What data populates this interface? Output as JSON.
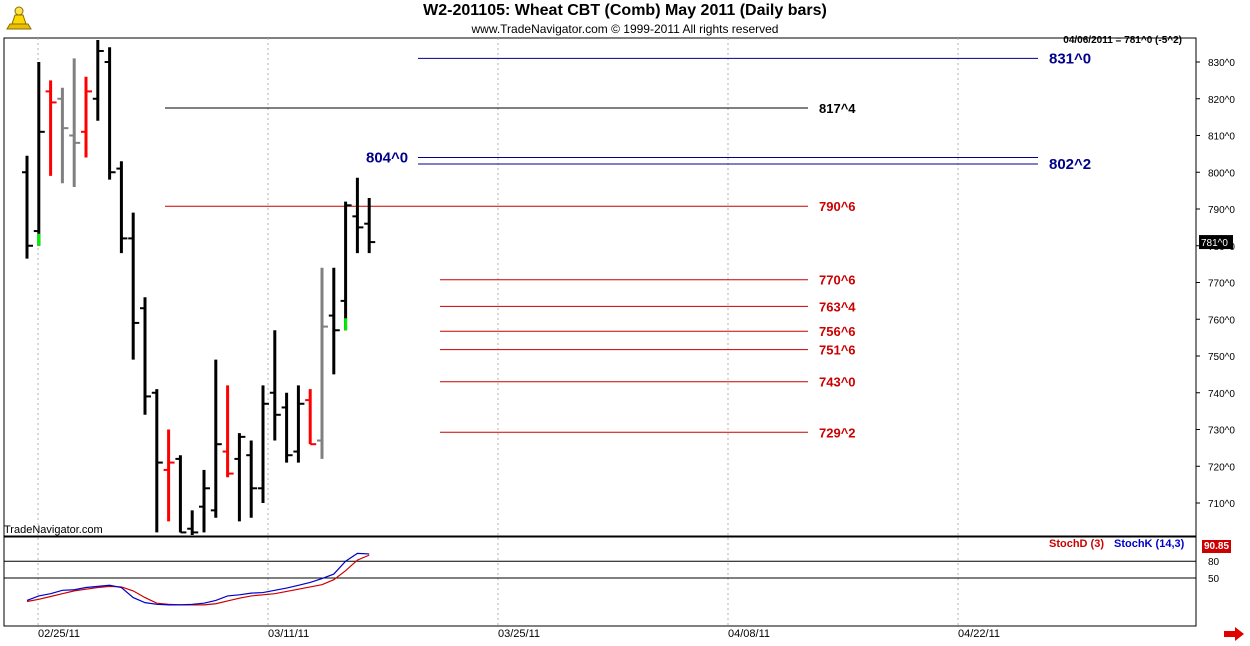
{
  "header": {
    "title": "W2-201105:  Wheat CBT (Comb) May 2011  (Daily bars)",
    "subtitle": "www.TradeNavigator.com © 1999-2011 All rights reserved",
    "price_readout": "04/06/2011 = 781^0 (-5^2)",
    "logo_icon": "trade-navigator-logo-icon"
  },
  "watermark": "TradeNavigator.com",
  "colors": {
    "bar_default": "#000000",
    "bar_red": "#ff0000",
    "bar_gray": "#808080",
    "bar_green": "#00ee00",
    "level_blue": "#00008b",
    "level_red": "#cc0000",
    "level_black": "#000000",
    "stoch_d": "#cc0000",
    "stoch_k": "#0000cc"
  },
  "chart_data": [
    {
      "type": "ohlc",
      "title": "W2-201105:  Wheat CBT (Comb) May 2011  (Daily bars)",
      "ylim": [
        700,
        836
      ],
      "y_ticks": [
        "710^0",
        "720^0",
        "730^0",
        "740^0",
        "750^0",
        "760^0",
        "770^0",
        "780^0",
        "790^0",
        "800^0",
        "810^0",
        "820^0",
        "830^0"
      ],
      "x_ticks": [
        "02/25/11",
        "03/11/11",
        "03/25/11",
        "04/08/11",
        "04/22/11"
      ],
      "current_price_label": "781^0",
      "bars": [
        {
          "date": "02/23/11",
          "open": 800,
          "high": 804.5,
          "low": 776.5,
          "close": 780,
          "color": "bar_default"
        },
        {
          "date": "02/24/11",
          "open": 784,
          "high": 830,
          "low": 780,
          "close": 811,
          "color": "bar_default"
        },
        {
          "date": "02/25/11",
          "open": 822,
          "high": 825,
          "low": 799,
          "close": 819,
          "color": "bar_red"
        },
        {
          "date": "02/28/11",
          "open": 820,
          "high": 823,
          "low": 797,
          "close": 812,
          "color": "bar_gray"
        },
        {
          "date": "03/01/11",
          "open": 810,
          "high": 831,
          "low": 796,
          "close": 808,
          "color": "bar_gray"
        },
        {
          "date": "03/02/11",
          "open": 811,
          "high": 826,
          "low": 804,
          "close": 822,
          "color": "bar_red"
        },
        {
          "date": "03/03/11",
          "open": 820,
          "high": 836,
          "low": 814,
          "close": 833,
          "color": "bar_default"
        },
        {
          "date": "03/04/11",
          "open": 830,
          "high": 834,
          "low": 798,
          "close": 800,
          "color": "bar_default"
        },
        {
          "date": "03/07/11",
          "open": 801,
          "high": 803,
          "low": 778,
          "close": 782,
          "color": "bar_default"
        },
        {
          "date": "03/08/11",
          "open": 782,
          "high": 789,
          "low": 749,
          "close": 759,
          "color": "bar_default"
        },
        {
          "date": "03/09/11",
          "open": 763,
          "high": 766,
          "low": 734,
          "close": 739,
          "color": "bar_default"
        },
        {
          "date": "03/10/11",
          "open": 740,
          "high": 741,
          "low": 702,
          "close": 721,
          "color": "bar_default"
        },
        {
          "date": "03/11/11",
          "open": 719,
          "high": 730,
          "low": 705,
          "close": 721,
          "color": "bar_red"
        },
        {
          "date": "03/14/11",
          "open": 722,
          "high": 723,
          "low": 702,
          "close": 702,
          "color": "bar_default"
        },
        {
          "date": "03/15/11",
          "open": 703,
          "high": 708,
          "low": 698,
          "close": 702,
          "color": "bar_default"
        },
        {
          "date": "03/16/11",
          "open": 709,
          "high": 719,
          "low": 702,
          "close": 714,
          "color": "bar_default"
        },
        {
          "date": "03/17/11",
          "open": 708,
          "high": 749,
          "low": 706,
          "close": 726,
          "color": "bar_default"
        },
        {
          "date": "03/18/11",
          "open": 724,
          "high": 742,
          "low": 717,
          "close": 718,
          "color": "bar_red"
        },
        {
          "date": "03/21/11",
          "open": 722,
          "high": 729,
          "low": 705,
          "close": 728,
          "color": "bar_default"
        },
        {
          "date": "03/22/11",
          "open": 723,
          "high": 727,
          "low": 706,
          "close": 714,
          "color": "bar_default"
        },
        {
          "date": "03/23/11",
          "open": 714,
          "high": 742,
          "low": 710,
          "close": 737,
          "color": "bar_default"
        },
        {
          "date": "03/24/11",
          "open": 740,
          "high": 757,
          "low": 727,
          "close": 734,
          "color": "bar_default"
        },
        {
          "date": "03/25/11",
          "open": 736,
          "high": 740,
          "low": 721,
          "close": 723,
          "color": "bar_default"
        },
        {
          "date": "03/28/11",
          "open": 724,
          "high": 742,
          "low": 721,
          "close": 737,
          "color": "bar_default"
        },
        {
          "date": "03/29/11",
          "open": 738,
          "high": 741,
          "low": 726,
          "close": 726,
          "color": "bar_red"
        },
        {
          "date": "03/30/11",
          "open": 727,
          "high": 774,
          "low": 722,
          "close": 758,
          "color": "bar_gray"
        },
        {
          "date": "03/31/11",
          "open": 761,
          "high": 774,
          "low": 745,
          "close": 757,
          "color": "bar_default"
        },
        {
          "date": "04/01/11",
          "open": 765,
          "high": 792,
          "low": 757,
          "close": 791,
          "color": "bar_default"
        },
        {
          "date": "04/04/11",
          "open": 788,
          "high": 798.5,
          "low": 778,
          "close": 785,
          "color": "bar_default"
        },
        {
          "date": "04/05/11",
          "open": 786,
          "high": 793,
          "low": 778,
          "close": 781,
          "color": "bar_default"
        }
      ],
      "levels": [
        {
          "label": "831^0",
          "value": 831,
          "color": "level_blue",
          "label_side": "right"
        },
        {
          "label": "817^4",
          "value": 817.5,
          "color": "level_black",
          "label_side": "right"
        },
        {
          "label": "804^0",
          "value": 804,
          "color": "level_blue",
          "label_side": "left"
        },
        {
          "label": "802^2",
          "value": 802.25,
          "color": "level_blue",
          "label_side": "right"
        },
        {
          "label": "790^6",
          "value": 790.75,
          "color": "level_red",
          "label_side": "right"
        },
        {
          "label": "770^6",
          "value": 770.75,
          "color": "level_red",
          "label_side": "right"
        },
        {
          "label": "763^4",
          "value": 763.5,
          "color": "level_red",
          "label_side": "right"
        },
        {
          "label": "756^6",
          "value": 756.75,
          "color": "level_red",
          "label_side": "right"
        },
        {
          "label": "751^6",
          "value": 751.75,
          "color": "level_red",
          "label_side": "right"
        },
        {
          "label": "743^0",
          "value": 743,
          "color": "level_red",
          "label_side": "right"
        },
        {
          "label": "729^2",
          "value": 729.25,
          "color": "level_red",
          "label_side": "right"
        }
      ]
    },
    {
      "type": "line",
      "ylim": [
        0,
        100
      ],
      "y_ticks": [
        50,
        80
      ],
      "series": [
        {
          "name": "StochD (3)",
          "color": "stoch_d",
          "values": [
            8,
            12,
            17,
            22,
            27,
            30,
            33,
            35,
            34,
            27,
            15,
            5,
            3,
            2,
            2,
            2,
            4,
            9,
            14,
            18,
            20,
            22,
            26,
            30,
            34,
            38,
            47,
            63,
            82,
            90.85
          ]
        },
        {
          "name": "StochK (14,3)",
          "color": "stoch_k",
          "values": [
            10,
            18,
            22,
            28,
            29,
            33,
            35,
            37,
            33,
            15,
            6,
            3,
            2,
            2,
            3,
            5,
            10,
            18,
            20,
            23,
            24,
            28,
            32,
            37,
            42,
            49,
            57,
            80,
            94,
            93
          ]
        }
      ],
      "current_value_label": "90.85"
    }
  ]
}
